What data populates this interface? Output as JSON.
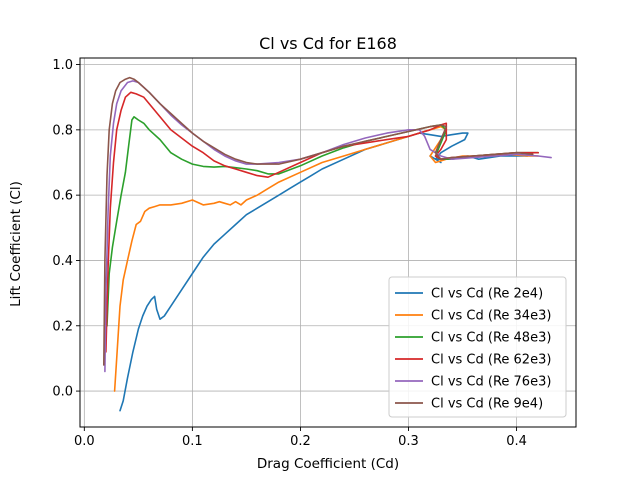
{
  "chart_data": {
    "type": "line",
    "title": "Cl vs Cd for E168",
    "xlabel": "Drag Coefficient (Cd)",
    "ylabel": "Lift Coefficient (Cl)",
    "xlim": [
      -0.004,
      0.455
    ],
    "ylim": [
      -0.11,
      1.02
    ],
    "xticks": [
      0.0,
      0.1,
      0.2,
      0.3,
      0.4
    ],
    "xtick_labels": [
      "0.0",
      "0.1",
      "0.2",
      "0.3",
      "0.4"
    ],
    "yticks": [
      0.0,
      0.2,
      0.4,
      0.6,
      0.8,
      1.0
    ],
    "ytick_labels": [
      "0.0",
      "0.2",
      "0.4",
      "0.6",
      "0.8",
      "1.0"
    ],
    "grid": true,
    "legend_position": "lower-right",
    "series": [
      {
        "name": "Cl vs Cd (Re 2e4)",
        "color": "#1f77b4",
        "x": [
          0.033,
          0.036,
          0.04,
          0.045,
          0.05,
          0.054,
          0.058,
          0.062,
          0.065,
          0.067,
          0.07,
          0.074,
          0.08,
          0.09,
          0.1,
          0.11,
          0.12,
          0.13,
          0.14,
          0.15,
          0.16,
          0.17,
          0.18,
          0.19,
          0.2,
          0.21,
          0.22,
          0.24,
          0.26,
          0.28,
          0.3,
          0.31,
          0.32,
          0.33,
          0.34,
          0.35,
          0.355,
          0.352,
          0.34,
          0.33,
          0.325,
          0.33,
          0.32,
          0.325,
          0.335,
          0.345,
          0.355,
          0.365,
          0.375,
          0.385,
          0.395,
          0.405,
          0.41
        ],
        "y": [
          -0.06,
          -0.03,
          0.04,
          0.12,
          0.19,
          0.23,
          0.26,
          0.28,
          0.29,
          0.25,
          0.22,
          0.23,
          0.26,
          0.31,
          0.36,
          0.41,
          0.45,
          0.48,
          0.51,
          0.54,
          0.56,
          0.58,
          0.6,
          0.62,
          0.64,
          0.66,
          0.68,
          0.71,
          0.74,
          0.76,
          0.78,
          0.79,
          0.785,
          0.78,
          0.785,
          0.79,
          0.79,
          0.77,
          0.75,
          0.73,
          0.71,
          0.7,
          0.72,
          0.71,
          0.71,
          0.715,
          0.72,
          0.71,
          0.715,
          0.72,
          0.72,
          0.72,
          0.72
        ]
      },
      {
        "name": "Cl vs Cd (Re 34e3)",
        "color": "#ff7f0e",
        "x": [
          0.028,
          0.03,
          0.033,
          0.036,
          0.04,
          0.044,
          0.048,
          0.052,
          0.056,
          0.06,
          0.065,
          0.07,
          0.08,
          0.09,
          0.1,
          0.11,
          0.12,
          0.125,
          0.13,
          0.135,
          0.14,
          0.145,
          0.15,
          0.16,
          0.17,
          0.18,
          0.2,
          0.22,
          0.24,
          0.26,
          0.28,
          0.3,
          0.32,
          0.33,
          0.335,
          0.33,
          0.32,
          0.325,
          0.335,
          0.35,
          0.37,
          0.39,
          0.41,
          0.42
        ],
        "y": [
          0.0,
          0.1,
          0.26,
          0.34,
          0.4,
          0.46,
          0.51,
          0.52,
          0.55,
          0.56,
          0.565,
          0.57,
          0.57,
          0.575,
          0.585,
          0.57,
          0.575,
          0.58,
          0.575,
          0.57,
          0.58,
          0.57,
          0.585,
          0.6,
          0.62,
          0.64,
          0.67,
          0.7,
          0.72,
          0.74,
          0.76,
          0.78,
          0.8,
          0.81,
          0.8,
          0.77,
          0.72,
          0.7,
          0.71,
          0.72,
          0.72,
          0.725,
          0.72,
          0.72
        ]
      },
      {
        "name": "Cl vs Cd (Re 48e3)",
        "color": "#2ca02c",
        "x": [
          0.021,
          0.023,
          0.026,
          0.03,
          0.034,
          0.038,
          0.041,
          0.044,
          0.046,
          0.05,
          0.055,
          0.06,
          0.07,
          0.08,
          0.09,
          0.1,
          0.11,
          0.12,
          0.13,
          0.14,
          0.15,
          0.16,
          0.17,
          0.18,
          0.2,
          0.22,
          0.24,
          0.26,
          0.28,
          0.3,
          0.32,
          0.33,
          0.335,
          0.33,
          0.325,
          0.33,
          0.34,
          0.36,
          0.38,
          0.4,
          0.42
        ],
        "y": [
          0.2,
          0.36,
          0.44,
          0.52,
          0.6,
          0.67,
          0.75,
          0.83,
          0.84,
          0.83,
          0.82,
          0.8,
          0.77,
          0.73,
          0.71,
          0.695,
          0.688,
          0.686,
          0.688,
          0.684,
          0.68,
          0.675,
          0.665,
          0.665,
          0.69,
          0.72,
          0.745,
          0.765,
          0.78,
          0.795,
          0.81,
          0.815,
          0.8,
          0.76,
          0.72,
          0.71,
          0.71,
          0.72,
          0.725,
          0.73,
          0.73
        ]
      },
      {
        "name": "Cl vs Cd (Re 62e3)",
        "color": "#d62728",
        "x": [
          0.02,
          0.022,
          0.024,
          0.027,
          0.03,
          0.034,
          0.038,
          0.043,
          0.048,
          0.055,
          0.06,
          0.07,
          0.08,
          0.09,
          0.1,
          0.11,
          0.12,
          0.13,
          0.14,
          0.15,
          0.16,
          0.17,
          0.18,
          0.2,
          0.22,
          0.24,
          0.26,
          0.28,
          0.3,
          0.32,
          0.33,
          0.335,
          0.335,
          0.33,
          0.325,
          0.33,
          0.34,
          0.36,
          0.38,
          0.4,
          0.42
        ],
        "y": [
          0.12,
          0.38,
          0.56,
          0.7,
          0.8,
          0.86,
          0.9,
          0.915,
          0.91,
          0.9,
          0.88,
          0.84,
          0.8,
          0.775,
          0.75,
          0.73,
          0.705,
          0.69,
          0.68,
          0.67,
          0.66,
          0.655,
          0.67,
          0.7,
          0.73,
          0.75,
          0.76,
          0.77,
          0.78,
          0.8,
          0.815,
          0.82,
          0.77,
          0.74,
          0.72,
          0.71,
          0.715,
          0.72,
          0.725,
          0.73,
          0.73
        ]
      },
      {
        "name": "Cl vs Cd (Re 76e3)",
        "color": "#9467bd",
        "x": [
          0.019,
          0.02,
          0.022,
          0.024,
          0.027,
          0.03,
          0.034,
          0.04,
          0.045,
          0.05,
          0.06,
          0.07,
          0.08,
          0.09,
          0.1,
          0.11,
          0.12,
          0.13,
          0.14,
          0.15,
          0.16,
          0.18,
          0.2,
          0.22,
          0.24,
          0.26,
          0.28,
          0.3,
          0.31,
          0.315,
          0.32,
          0.33,
          0.34,
          0.36,
          0.38,
          0.4,
          0.42,
          0.432
        ],
        "y": [
          0.06,
          0.3,
          0.55,
          0.72,
          0.82,
          0.88,
          0.92,
          0.945,
          0.95,
          0.945,
          0.915,
          0.88,
          0.845,
          0.815,
          0.79,
          0.765,
          0.74,
          0.72,
          0.705,
          0.695,
          0.695,
          0.7,
          0.71,
          0.73,
          0.755,
          0.775,
          0.79,
          0.8,
          0.8,
          0.78,
          0.74,
          0.72,
          0.71,
          0.715,
          0.72,
          0.725,
          0.72,
          0.715
        ]
      },
      {
        "name": "Cl vs Cd (Re 9e4)",
        "color": "#8c564b",
        "x": [
          0.018,
          0.019,
          0.021,
          0.023,
          0.026,
          0.029,
          0.033,
          0.038,
          0.042,
          0.046,
          0.05,
          0.06,
          0.07,
          0.08,
          0.09,
          0.1,
          0.11,
          0.12,
          0.13,
          0.14,
          0.15,
          0.16,
          0.18,
          0.2,
          0.22,
          0.24,
          0.26,
          0.28,
          0.3,
          0.32,
          0.33,
          0.335,
          0.33,
          0.325,
          0.33,
          0.34,
          0.36,
          0.38,
          0.4,
          0.415
        ],
        "y": [
          0.08,
          0.4,
          0.66,
          0.8,
          0.88,
          0.92,
          0.945,
          0.955,
          0.96,
          0.955,
          0.945,
          0.915,
          0.88,
          0.85,
          0.82,
          0.79,
          0.765,
          0.745,
          0.725,
          0.71,
          0.7,
          0.695,
          0.695,
          0.71,
          0.73,
          0.75,
          0.765,
          0.78,
          0.795,
          0.81,
          0.815,
          0.81,
          0.77,
          0.73,
          0.71,
          0.715,
          0.72,
          0.725,
          0.73,
          0.725
        ]
      }
    ]
  }
}
